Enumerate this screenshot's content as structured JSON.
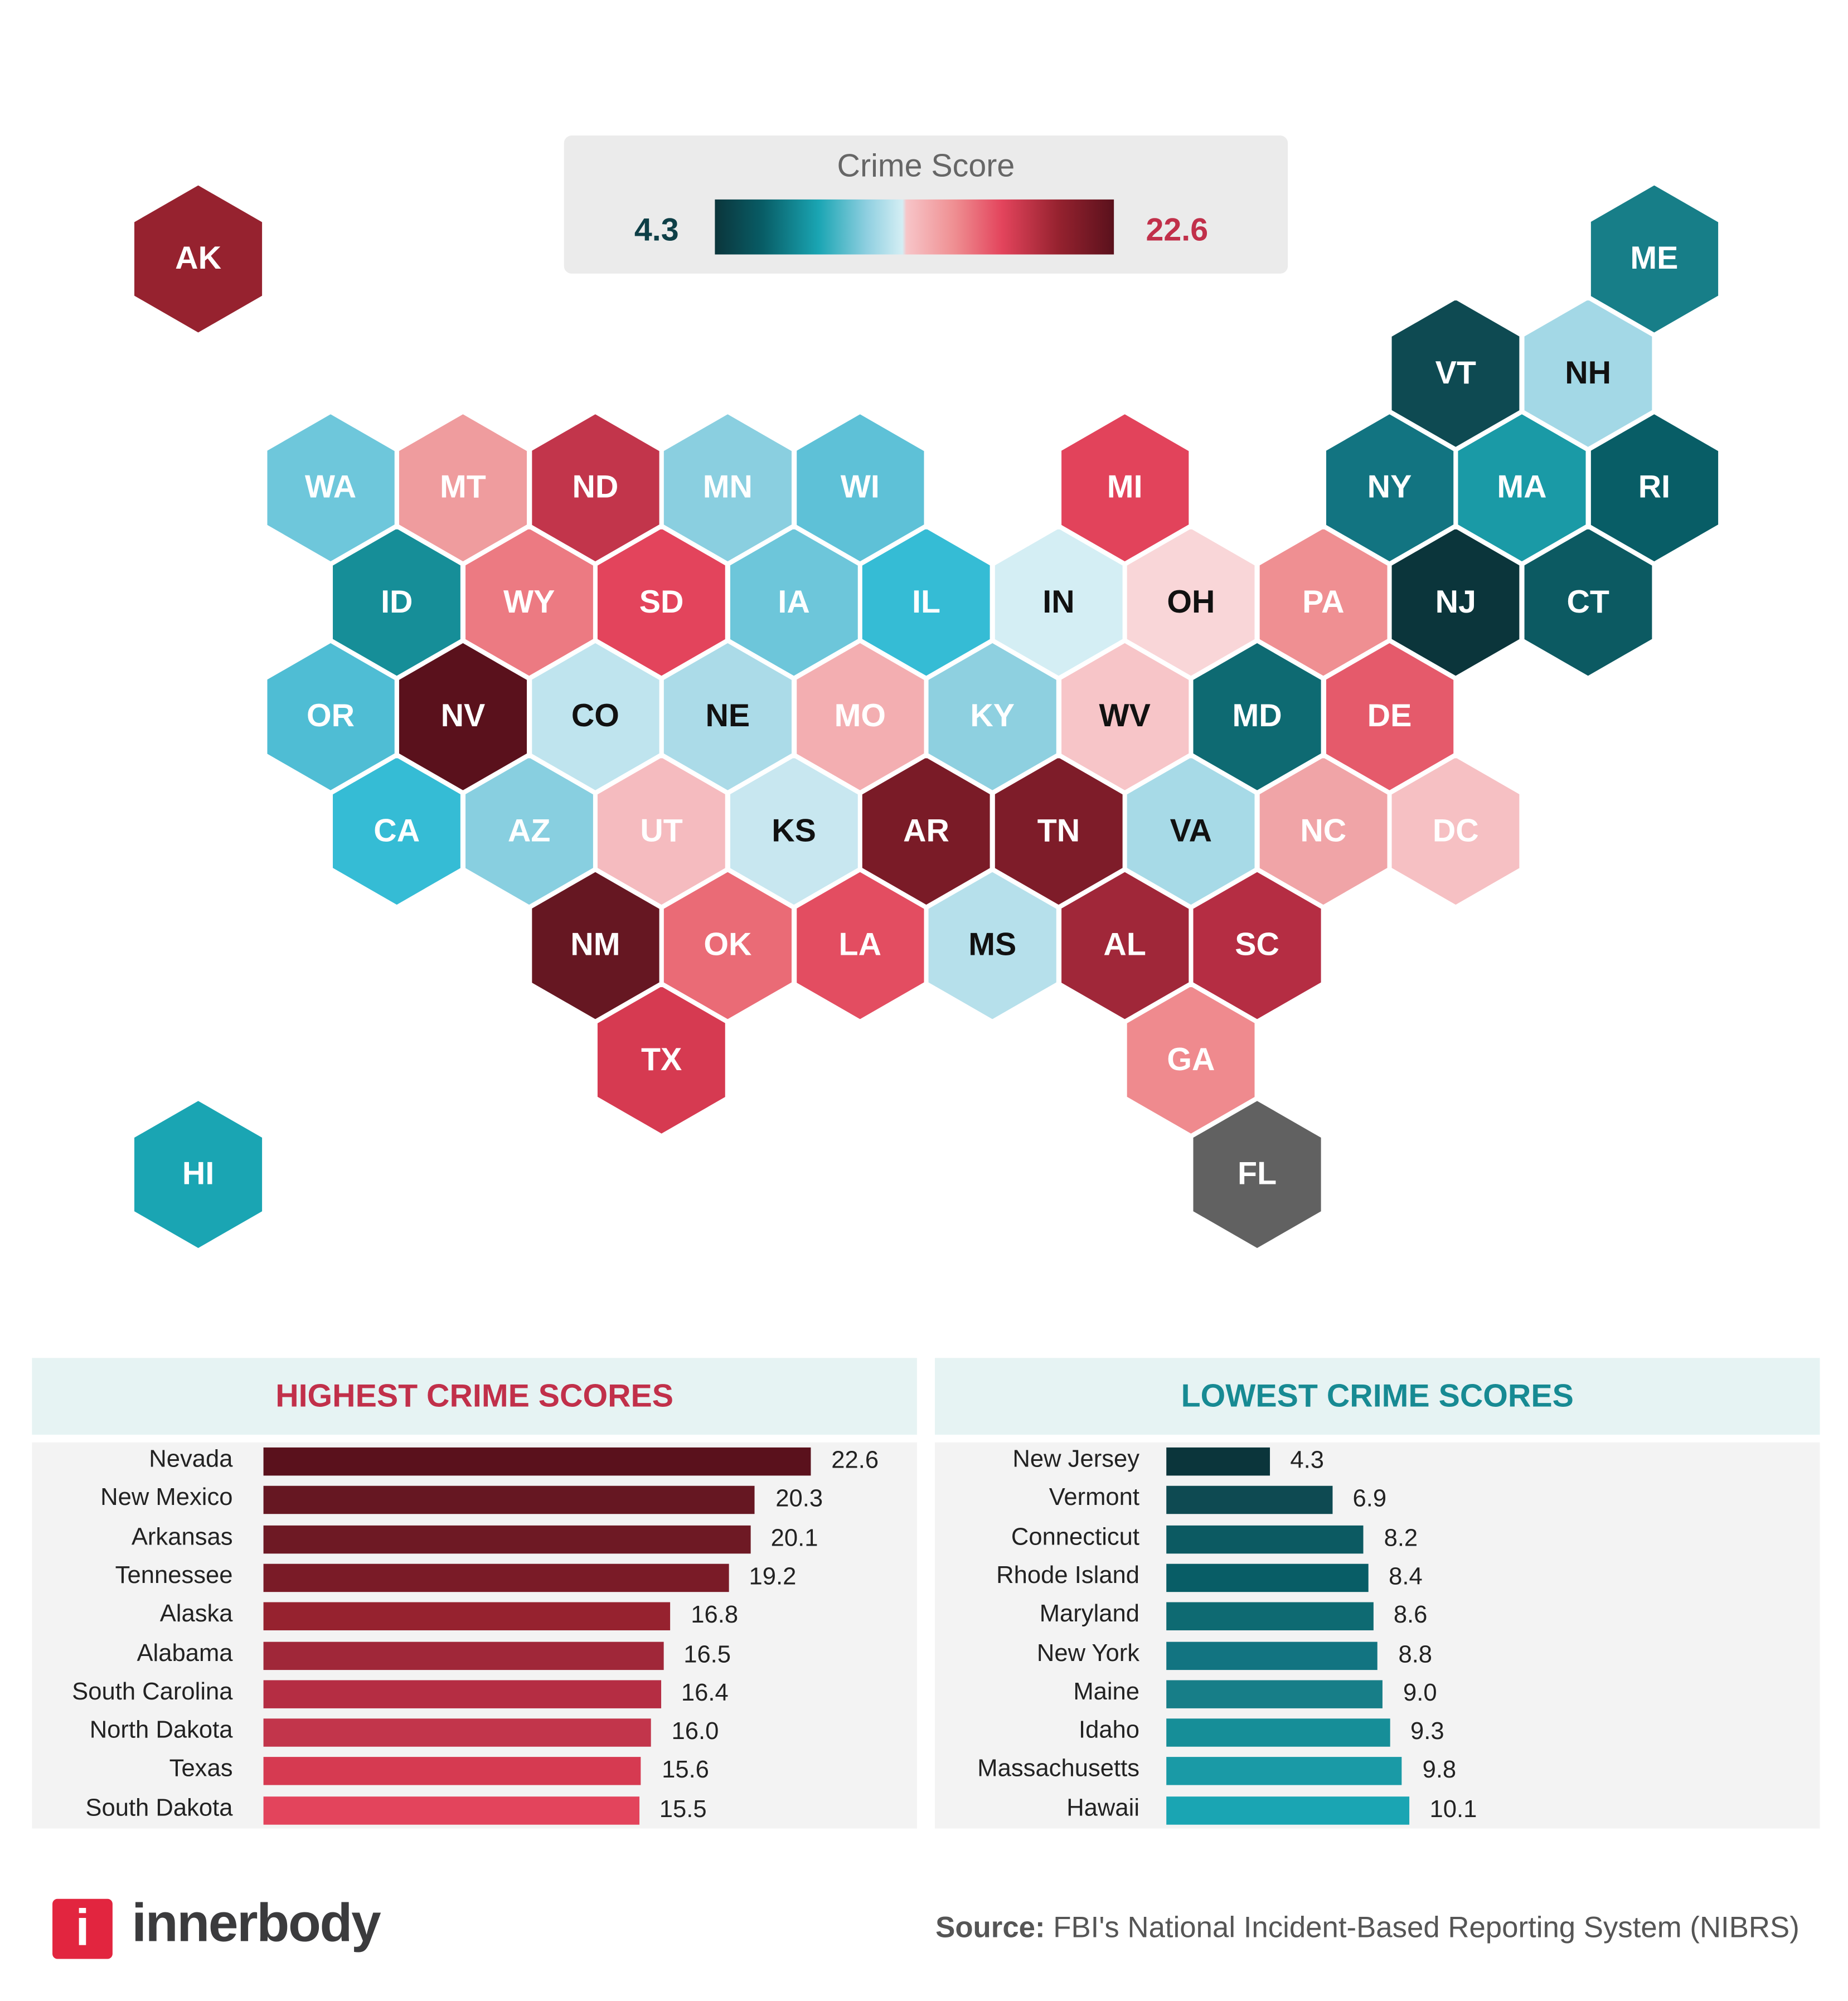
{
  "legend": {
    "title": "Crime Score",
    "min": "4.3",
    "max": "22.6",
    "min_color": "#0e3f47",
    "max_color": "#c1304a"
  },
  "states": [
    {
      "abbr": "AK",
      "col": 0,
      "row": 0,
      "color": "#96222f",
      "text": "#fff"
    },
    {
      "abbr": "ME",
      "col": 11,
      "row": 0,
      "color": "#177e88",
      "text": "#fff"
    },
    {
      "abbr": "VT",
      "col": 9.5,
      "row": 1,
      "color": "#0e4a52",
      "text": "#fff"
    },
    {
      "abbr": "NH",
      "col": 10.5,
      "row": 1,
      "color": "#a3d8e6",
      "text": "#111"
    },
    {
      "abbr": "WA",
      "col": 1,
      "row": 2,
      "color": "#6ec7db",
      "text": "#fff"
    },
    {
      "abbr": "MT",
      "col": 2,
      "row": 2,
      "color": "#ef9c9e",
      "text": "#fff"
    },
    {
      "abbr": "ND",
      "col": 3,
      "row": 2,
      "color": "#c2354b",
      "text": "#fff"
    },
    {
      "abbr": "MN",
      "col": 4,
      "row": 2,
      "color": "#8acfe0",
      "text": "#fff"
    },
    {
      "abbr": "WI",
      "col": 5,
      "row": 2,
      "color": "#5ec1d7",
      "text": "#fff"
    },
    {
      "abbr": "MI",
      "col": 7,
      "row": 2,
      "color": "#e2435b",
      "text": "#fff"
    },
    {
      "abbr": "NY",
      "col": 9,
      "row": 2,
      "color": "#127481",
      "text": "#fff"
    },
    {
      "abbr": "MA",
      "col": 10,
      "row": 2,
      "color": "#1a9aa6",
      "text": "#fff"
    },
    {
      "abbr": "RI",
      "col": 11,
      "row": 2,
      "color": "#085d66",
      "text": "#fff"
    },
    {
      "abbr": "ID",
      "col": 1.5,
      "row": 3,
      "color": "#168e98",
      "text": "#fff"
    },
    {
      "abbr": "WY",
      "col": 2.5,
      "row": 3,
      "color": "#ec7a82",
      "text": "#fff"
    },
    {
      "abbr": "SD",
      "col": 3.5,
      "row": 3,
      "color": "#e3445c",
      "text": "#fff"
    },
    {
      "abbr": "IA",
      "col": 4.5,
      "row": 3,
      "color": "#6dc6da",
      "text": "#fff"
    },
    {
      "abbr": "IL",
      "col": 5.5,
      "row": 3,
      "color": "#35bcd5",
      "text": "#fff"
    },
    {
      "abbr": "IN",
      "col": 6.5,
      "row": 3,
      "color": "#d4eef4",
      "text": "#111"
    },
    {
      "abbr": "OH",
      "col": 7.5,
      "row": 3,
      "color": "#f9d6d8",
      "text": "#111"
    },
    {
      "abbr": "PA",
      "col": 8.5,
      "row": 3,
      "color": "#ef8f92",
      "text": "#fff"
    },
    {
      "abbr": "NJ",
      "col": 9.5,
      "row": 3,
      "color": "#0b353b",
      "text": "#fff"
    },
    {
      "abbr": "CT",
      "col": 10.5,
      "row": 3,
      "color": "#0c5a62",
      "text": "#fff"
    },
    {
      "abbr": "OR",
      "col": 1,
      "row": 4,
      "color": "#4fbdd4",
      "text": "#fff"
    },
    {
      "abbr": "NV",
      "col": 2,
      "row": 4,
      "color": "#5a111c",
      "text": "#fff"
    },
    {
      "abbr": "CO",
      "col": 3,
      "row": 4,
      "color": "#bfe4ee",
      "text": "#111"
    },
    {
      "abbr": "NE",
      "col": 4,
      "row": 4,
      "color": "#abdbe8",
      "text": "#111"
    },
    {
      "abbr": "MO",
      "col": 5,
      "row": 4,
      "color": "#f3aeb1",
      "text": "#fff"
    },
    {
      "abbr": "KY",
      "col": 6,
      "row": 4,
      "color": "#8ed0e0",
      "text": "#fff"
    },
    {
      "abbr": "WV",
      "col": 7,
      "row": 4,
      "color": "#f7c5c8",
      "text": "#111"
    },
    {
      "abbr": "MD",
      "col": 8,
      "row": 4,
      "color": "#0e6a72",
      "text": "#fff"
    },
    {
      "abbr": "DE",
      "col": 9,
      "row": 4,
      "color": "#e55a6b",
      "text": "#fff"
    },
    {
      "abbr": "CA",
      "col": 1.5,
      "row": 5,
      "color": "#35bcd5",
      "text": "#fff"
    },
    {
      "abbr": "AZ",
      "col": 2.5,
      "row": 5,
      "color": "#88cfe0",
      "text": "#fff"
    },
    {
      "abbr": "UT",
      "col": 3.5,
      "row": 5,
      "color": "#f5bbbf",
      "text": "#fff"
    },
    {
      "abbr": "KS",
      "col": 4.5,
      "row": 5,
      "color": "#c8e7f0",
      "text": "#111"
    },
    {
      "abbr": "AR",
      "col": 5.5,
      "row": 5,
      "color": "#7a1b27",
      "text": "#fff"
    },
    {
      "abbr": "TN",
      "col": 6.5,
      "row": 5,
      "color": "#7e1c29",
      "text": "#fff"
    },
    {
      "abbr": "VA",
      "col": 7.5,
      "row": 5,
      "color": "#a7dae7",
      "text": "#111"
    },
    {
      "abbr": "NC",
      "col": 8.5,
      "row": 5,
      "color": "#f0a4a7",
      "text": "#fff"
    },
    {
      "abbr": "DC",
      "col": 9.5,
      "row": 5,
      "color": "#f6c0c3",
      "text": "#fff"
    },
    {
      "abbr": "NM",
      "col": 3,
      "row": 6,
      "color": "#661722",
      "text": "#fff"
    },
    {
      "abbr": "OK",
      "col": 4,
      "row": 6,
      "color": "#ea6b76",
      "text": "#fff"
    },
    {
      "abbr": "LA",
      "col": 5,
      "row": 6,
      "color": "#e34d61",
      "text": "#fff"
    },
    {
      "abbr": "MS",
      "col": 6,
      "row": 6,
      "color": "#b6e0eb",
      "text": "#111"
    },
    {
      "abbr": "AL",
      "col": 7,
      "row": 6,
      "color": "#a02739",
      "text": "#fff"
    },
    {
      "abbr": "SC",
      "col": 8,
      "row": 6,
      "color": "#b52d43",
      "text": "#fff"
    },
    {
      "abbr": "TX",
      "col": 3.5,
      "row": 7,
      "color": "#d63a51",
      "text": "#fff"
    },
    {
      "abbr": "GA",
      "col": 7.5,
      "row": 7,
      "color": "#ef8a8e",
      "text": "#fff"
    },
    {
      "abbr": "HI",
      "col": 0,
      "row": 8,
      "color": "#1aa5b3",
      "text": "#fff"
    },
    {
      "abbr": "FL",
      "col": 8,
      "row": 8,
      "color": "#616161",
      "text": "#fff"
    }
  ],
  "chart_data": [
    {
      "type": "bar",
      "title": "HIGHEST CRIME SCORES",
      "title_color": "#c1304a",
      "categories": [
        "Nevada",
        "New Mexico",
        "Arkansas",
        "Tennessee",
        "Alaska",
        "Alabama",
        "South Carolina",
        "North Dakota",
        "Texas",
        "South Dakota"
      ],
      "values": [
        22.6,
        20.3,
        20.1,
        19.2,
        16.8,
        16.5,
        16.4,
        16.0,
        15.6,
        15.5
      ],
      "labels": [
        "22.6",
        "20.3",
        "20.1",
        "19.2",
        "16.8",
        "16.5",
        "16.4",
        "16.0",
        "15.6",
        "15.5"
      ],
      "colors": [
        "#5a111c",
        "#661722",
        "#6e1924",
        "#7a1b27",
        "#96222f",
        "#a02739",
        "#b52d43",
        "#c2354b",
        "#d63a51",
        "#e3445c"
      ]
    },
    {
      "type": "bar",
      "title": "LOWEST CRIME SCORES",
      "title_color": "#178a93",
      "categories": [
        "New Jersey",
        "Vermont",
        "Connecticut",
        "Rhode Island",
        "Maryland",
        "New York",
        "Maine",
        "Idaho",
        "Massachusetts",
        "Hawaii"
      ],
      "values": [
        4.3,
        6.9,
        8.2,
        8.4,
        8.6,
        8.8,
        9.0,
        9.3,
        9.8,
        10.1
      ],
      "labels": [
        "4.3",
        "6.9",
        "8.2",
        "8.4",
        "8.6",
        "8.8",
        "9.0",
        "9.3",
        "9.8",
        "10.1"
      ],
      "colors": [
        "#0b353b",
        "#0e4a52",
        "#0c5a62",
        "#085d66",
        "#0e6a72",
        "#127481",
        "#177e88",
        "#168e98",
        "#1a9aa6",
        "#1aa5b3"
      ]
    }
  ],
  "footer": {
    "logo_mark": "i",
    "logo_text": "innerbody",
    "source_label": "Source:",
    "source_text": " FBI's National Incident-Based Reporting System (NIBRS)"
  }
}
